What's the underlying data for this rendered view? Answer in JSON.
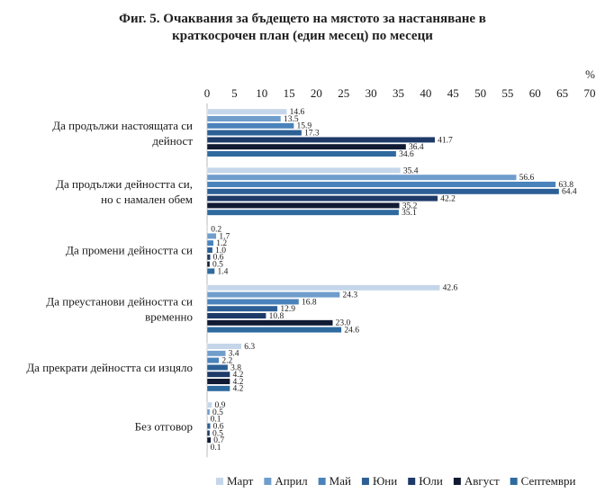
{
  "title_line1": "Фиг. 5. Очаквания за бъдещето на мястото за настаняване в",
  "title_line2": "краткосрочен план (един месец) по месеци",
  "chart_data": {
    "type": "bar",
    "orientation": "horizontal",
    "unit": "%",
    "xlim": [
      0,
      70
    ],
    "xticks": [
      0,
      5,
      10,
      15,
      20,
      25,
      30,
      35,
      40,
      45,
      50,
      55,
      60,
      65,
      70
    ],
    "grid": false,
    "legend_position": "bottom",
    "categories": [
      [
        "Да продължи настоящата си",
        "дейност"
      ],
      [
        "Да продължи дейността си,",
        "но с намален обем"
      ],
      [
        "Да промени дейността си"
      ],
      [
        "Да преустанови дейността си",
        "временно"
      ],
      [
        "Да прекрати дейността си изцяло"
      ],
      [
        "Без отговор"
      ]
    ],
    "series": [
      {
        "name": "Март",
        "color": "#c5d6ea",
        "values": [
          14.6,
          35.4,
          0.2,
          42.6,
          6.3,
          0.9
        ]
      },
      {
        "name": "Април",
        "color": "#6f9dcc",
        "values": [
          13.5,
          56.6,
          1.7,
          24.3,
          3.4,
          0.5
        ]
      },
      {
        "name": "Май",
        "color": "#4a83bb",
        "values": [
          15.9,
          63.8,
          1.2,
          16.8,
          2.2,
          0.1
        ]
      },
      {
        "name": "Юни",
        "color": "#2c5f95",
        "values": [
          17.3,
          64.4,
          1.0,
          12.9,
          3.8,
          0.6
        ]
      },
      {
        "name": "Юли",
        "color": "#1e3a68",
        "values": [
          41.7,
          42.2,
          0.6,
          10.8,
          4.2,
          0.5
        ]
      },
      {
        "name": "Август",
        "color": "#111a33",
        "values": [
          36.4,
          35.2,
          0.5,
          23.0,
          4.2,
          0.7
        ]
      },
      {
        "name": "Септември",
        "color": "#2e6a9e",
        "values": [
          34.6,
          35.1,
          1.4,
          24.6,
          4.2,
          0.1
        ]
      }
    ]
  }
}
